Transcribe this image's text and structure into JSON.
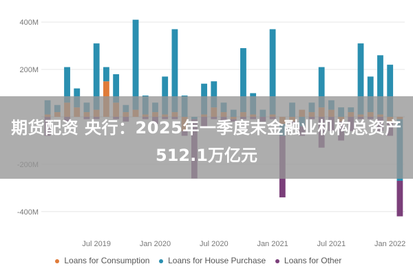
{
  "banner": {
    "line1": "期货配资 央行：2025年一季度末金融业机构总资产",
    "line2": "512.1万亿元"
  },
  "chart_data": {
    "type": "bar",
    "stacked": true,
    "y_ticks": [
      "400M",
      "200M",
      "-200M",
      "-400M"
    ],
    "y_tick_values": [
      400,
      200,
      -200,
      -400
    ],
    "ylim": [
      -450,
      470
    ],
    "x_ticks": [
      "Jul 2019",
      "Jan 2020",
      "Jul 2020",
      "Jan 2021",
      "Jul 2021",
      "Jan 2022"
    ],
    "x_tick_index": [
      5,
      11,
      17,
      23,
      29,
      35
    ],
    "categories_count": 37,
    "series": [
      {
        "name": "Loans for Consumption",
        "color": "#e07b39",
        "values": [
          10,
          20,
          60,
          40,
          20,
          30,
          150,
          60,
          20,
          30,
          10,
          20,
          10,
          20,
          -60,
          0,
          10,
          40,
          20,
          -10,
          20,
          10,
          0,
          10,
          -30,
          -20,
          30,
          20,
          40,
          30,
          -20,
          20,
          10,
          20,
          10,
          -20,
          -10
        ]
      },
      {
        "name": "Loans for House Purchase",
        "color": "#2a8fb0",
        "values": [
          60,
          30,
          150,
          80,
          40,
          280,
          60,
          120,
          30,
          380,
          80,
          40,
          160,
          350,
          90,
          -10,
          130,
          110,
          40,
          30,
          270,
          90,
          30,
          360,
          -50,
          60,
          -40,
          40,
          170,
          40,
          40,
          20,
          300,
          150,
          250,
          220,
          -260
        ]
      },
      {
        "name": "Loans for Other",
        "color": "#7b3f7a",
        "values": [
          -80,
          0,
          -20,
          0,
          -10,
          -10,
          0,
          -10,
          -20,
          0,
          -10,
          -30,
          -10,
          -10,
          -20,
          -250,
          -40,
          -10,
          -20,
          -10,
          -10,
          -10,
          -20,
          -10,
          -260,
          -10,
          -40,
          -10,
          -130,
          -60,
          -80,
          -60,
          -10,
          -10,
          -60,
          -60,
          -150
        ]
      }
    ]
  },
  "legend": {
    "items": [
      {
        "label": "Loans for Consumption",
        "color": "#e07b39"
      },
      {
        "label": "Loans for House Purchase",
        "color": "#2a8fb0"
      },
      {
        "label": "Loans for Other",
        "color": "#7b3f7a"
      }
    ]
  }
}
